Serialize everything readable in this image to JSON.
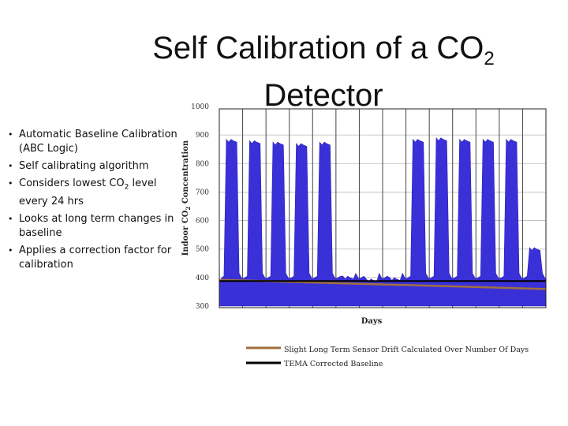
{
  "slide": {
    "title_main": "Self Calibration of a CO",
    "title_sub": "2",
    "title_line2": "Detector",
    "bullets": [
      {
        "text": "Automatic Baseline Calibration (ABC Logic)"
      },
      {
        "text": "Self calibrating algorithm"
      },
      {
        "text_before": "Considers lowest CO",
        "sub": "2",
        "text_after": " level every 24 hrs"
      },
      {
        "text": "Looks at long term changes in baseline"
      },
      {
        "text": "Applies a correction factor for calibration"
      }
    ]
  },
  "chart_data": {
    "type": "area",
    "xlabel": "Days",
    "ylabel_parts": [
      "Indoor CO",
      "2",
      " Concentration"
    ],
    "ylim": [
      300,
      1000
    ],
    "yticks": [
      "1000",
      "900",
      "800",
      "700",
      "600",
      "500",
      "400",
      "300"
    ],
    "ytick_values": [
      1000,
      900,
      800,
      700,
      600,
      500,
      400,
      300
    ],
    "x_day_count": 14,
    "grid": true,
    "day_peaks": [
      885,
      880,
      875,
      870,
      875,
      405,
      395,
      400,
      885,
      890,
      885,
      885,
      885,
      505
    ],
    "baseline_level": 375,
    "series": [
      {
        "name": "Slight Long Term Sensor Drift Calculated Over Number Of Days",
        "color": "#a0703c",
        "values": [
          392,
          360
        ]
      },
      {
        "name": "TEMA Corrected Baseline",
        "color": "#000000",
        "values": [
          388,
          388
        ]
      }
    ],
    "colors": {
      "fill": "#3a30d8",
      "drift": "#a0703c",
      "corrected": "#000000"
    }
  }
}
